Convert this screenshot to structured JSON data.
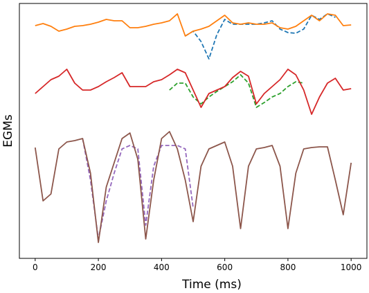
{
  "chart_data": {
    "type": "line",
    "xlabel": "Time (ms)",
    "ylabel": "EGMs",
    "x": [
      0,
      25,
      50,
      75,
      100,
      125,
      150,
      175,
      200,
      225,
      250,
      275,
      300,
      325,
      350,
      375,
      400,
      425,
      450,
      475,
      500,
      525,
      550,
      575,
      600,
      625,
      650,
      675,
      700,
      725,
      750,
      775,
      800,
      825,
      850,
      875,
      900,
      925,
      950,
      975,
      1000
    ],
    "xlim": [
      -50,
      1050
    ],
    "xticks": [
      0,
      200,
      400,
      600,
      800,
      1000
    ],
    "ylim": [
      0,
      368
    ],
    "series": [
      {
        "color": "#1f77b4",
        "dashed": true,
        "values": [
          null,
          null,
          null,
          null,
          null,
          null,
          null,
          null,
          null,
          null,
          null,
          null,
          null,
          null,
          null,
          null,
          null,
          null,
          null,
          321,
          328,
          313,
          288,
          323,
          345,
          338,
          338,
          338,
          338,
          340,
          343,
          331,
          326,
          325,
          331,
          351,
          345,
          353,
          348,
          null,
          null
        ]
      },
      {
        "color": "#ff7f0e",
        "dashed": false,
        "values": [
          336,
          339,
          335,
          328,
          331,
          335,
          336,
          338,
          341,
          345,
          343,
          343,
          333,
          333,
          335,
          338,
          340,
          343,
          353,
          321,
          328,
          331,
          335,
          343,
          351,
          340,
          338,
          340,
          338,
          338,
          340,
          333,
          331,
          335,
          343,
          351,
          343,
          353,
          351,
          336,
          337
        ]
      },
      {
        "color": "#2ca02c",
        "dashed": true,
        "values": [
          null,
          null,
          null,
          null,
          null,
          null,
          null,
          null,
          null,
          null,
          null,
          null,
          null,
          null,
          null,
          null,
          null,
          243,
          253,
          253,
          233,
          223,
          233,
          241,
          248,
          255,
          265,
          253,
          218,
          225,
          233,
          238,
          248,
          255,
          253,
          null,
          null,
          null,
          null,
          null,
          null
        ]
      },
      {
        "color": "#d62728",
        "dashed": false,
        "values": [
          238,
          248,
          258,
          263,
          273,
          253,
          243,
          243,
          248,
          255,
          261,
          268,
          248,
          248,
          248,
          255,
          258,
          265,
          273,
          268,
          243,
          218,
          238,
          243,
          248,
          261,
          270,
          263,
          223,
          238,
          248,
          258,
          273,
          265,
          243,
          208,
          233,
          253,
          260,
          243,
          245
        ]
      },
      {
        "color": "#9467bd",
        "dashed": true,
        "values": [
          null,
          null,
          null,
          null,
          null,
          null,
          173,
          113,
          28,
          83,
          123,
          158,
          163,
          158,
          48,
          133,
          163,
          163,
          163,
          158,
          73,
          null,
          null,
          null,
          null,
          null,
          null,
          null,
          null,
          null,
          null,
          null,
          null,
          null,
          null,
          null,
          null,
          null,
          null,
          null,
          null
        ]
      },
      {
        "color": "#8c564b",
        "dashed": false,
        "values": [
          160,
          83,
          93,
          158,
          168,
          170,
          173,
          123,
          23,
          103,
          138,
          173,
          181,
          143,
          28,
          113,
          173,
          183,
          158,
          113,
          53,
          133,
          158,
          163,
          168,
          133,
          43,
          133,
          158,
          160,
          163,
          133,
          43,
          123,
          158,
          160,
          161,
          161,
          113,
          63,
          138
        ]
      }
    ]
  }
}
